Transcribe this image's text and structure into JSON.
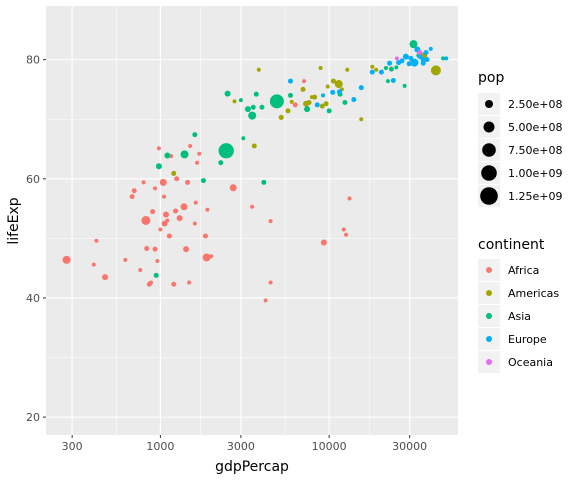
{
  "chart_data": {
    "type": "scatter",
    "title": "",
    "xlabel": "gdpPercap",
    "ylabel": "lifeExp",
    "x_scale": "log10",
    "xlim": [
      210,
      58000
    ],
    "ylim": [
      17,
      89
    ],
    "x_ticks": [
      300,
      1000,
      3000,
      10000,
      30000
    ],
    "x_tick_labels": [
      "300",
      "1000",
      "3000",
      "10000",
      "30000"
    ],
    "y_ticks": [
      20,
      40,
      60,
      80
    ],
    "y_tick_labels": [
      "20",
      "40",
      "60",
      "80"
    ],
    "grid": true,
    "legend_position": "right",
    "size_legend": {
      "title": "pop",
      "entries": [
        {
          "value": 250000000,
          "label": "2.50e+08"
        },
        {
          "value": 500000000,
          "label": "5.00e+08"
        },
        {
          "value": 750000000,
          "label": "7.50e+08"
        },
        {
          "value": 1000000000,
          "label": "1.00e+09"
        },
        {
          "value": 1250000000,
          "label": "1.25e+09"
        }
      ]
    },
    "color_legend": {
      "title": "continent",
      "entries": [
        {
          "name": "Africa",
          "color": "#F8766D"
        },
        {
          "name": "Americas",
          "color": "#A3A500"
        },
        {
          "name": "Asia",
          "color": "#00BF7D"
        },
        {
          "name": "Europe",
          "color": "#00B0F6"
        },
        {
          "name": "Oceania",
          "color": "#E76BF3"
        }
      ]
    },
    "series": [
      {
        "name": "Africa",
        "color": "#F8766D",
        "points": [
          [
            278,
            46.4,
            8
          ],
          [
            418,
            49.6,
            4
          ],
          [
            403,
            45.6,
            4
          ],
          [
            470,
            43.5,
            6
          ],
          [
            620,
            46.4,
            4
          ],
          [
            680,
            57,
            5
          ],
          [
            700,
            58,
            5
          ],
          [
            760,
            44.7,
            4
          ],
          [
            795,
            59.4,
            4
          ],
          [
            830,
            48.3,
            5
          ],
          [
            820,
            53,
            9
          ],
          [
            860,
            42.3,
            5
          ],
          [
            880,
            42.6,
            4
          ],
          [
            900,
            54.5,
            5
          ],
          [
            930,
            48.2,
            5
          ],
          [
            930,
            58.4,
            4
          ],
          [
            960,
            46.2,
            4
          ],
          [
            980,
            65.1,
            4
          ],
          [
            1000,
            51.5,
            4
          ],
          [
            1040,
            59.4,
            7
          ],
          [
            1050,
            57.0,
            4
          ],
          [
            1060,
            52.5,
            6
          ],
          [
            1080,
            54.0,
            6
          ],
          [
            1100,
            53.0,
            4
          ],
          [
            1130,
            50.4,
            5
          ],
          [
            1160,
            63.8,
            4
          ],
          [
            1200,
            42.3,
            5
          ],
          [
            1230,
            54.6,
            5
          ],
          [
            1250,
            60.0,
            5
          ],
          [
            1300,
            53.4,
            6
          ],
          [
            1380,
            55.3,
            7
          ],
          [
            1420,
            48.2,
            6
          ],
          [
            1450,
            59.4,
            5
          ],
          [
            1480,
            42.6,
            4
          ],
          [
            1500,
            65.5,
            4
          ],
          [
            1600,
            52.5,
            4
          ],
          [
            1620,
            56.0,
            4
          ],
          [
            1650,
            62.7,
            4
          ],
          [
            1700,
            64.2,
            4
          ],
          [
            1850,
            50.4,
            5
          ],
          [
            1880,
            46.8,
            8
          ],
          [
            1900,
            54.8,
            4
          ],
          [
            2000,
            47.0,
            4
          ],
          [
            2700,
            58.5,
            7
          ],
          [
            3500,
            55.3,
            4
          ],
          [
            4200,
            39.6,
            4
          ],
          [
            4500,
            42.6,
            4
          ],
          [
            4500,
            52.9,
            4
          ],
          [
            6300,
            72.4,
            5
          ],
          [
            7100,
            76.4,
            4
          ],
          [
            9300,
            49.3,
            6
          ],
          [
            12200,
            51.5,
            4
          ],
          [
            12600,
            50.6,
            4
          ],
          [
            13200,
            56.7,
            4
          ]
        ]
      },
      {
        "name": "Americas",
        "color": "#A3A500",
        "points": [
          [
            1200,
            60.9,
            5
          ],
          [
            2750,
            73.0,
            4
          ],
          [
            3600,
            65.5,
            5
          ],
          [
            3830,
            78.3,
            4
          ],
          [
            5200,
            70.3,
            5
          ],
          [
            5700,
            71.4,
            5
          ],
          [
            6000,
            72.9,
            4
          ],
          [
            7000,
            75.0,
            5
          ],
          [
            7300,
            72.6,
            6
          ],
          [
            7600,
            72.8,
            5
          ],
          [
            7900,
            73.7,
            4
          ],
          [
            8200,
            73.7,
            5
          ],
          [
            8900,
            78.6,
            4
          ],
          [
            9100,
            72.2,
            5
          ],
          [
            9600,
            72.6,
            5
          ],
          [
            9800,
            75.5,
            4
          ],
          [
            10600,
            76.4,
            5
          ],
          [
            11400,
            75.9,
            8
          ],
          [
            11900,
            75.0,
            4
          ],
          [
            12800,
            78.3,
            4
          ],
          [
            15500,
            70.0,
            4
          ],
          [
            18000,
            78.8,
            4
          ],
          [
            19000,
            78.3,
            4
          ],
          [
            36300,
            80.6,
            7
          ],
          [
            42900,
            78.2,
            10
          ]
        ]
      },
      {
        "name": "Asia",
        "color": "#00BF7D",
        "points": [
          [
            944,
            43.8,
            5
          ],
          [
            980,
            62.1,
            6
          ],
          [
            1100,
            63.9,
            6
          ],
          [
            1390,
            64.1,
            8
          ],
          [
            1600,
            67.4,
            5
          ],
          [
            1800,
            59.7,
            5
          ],
          [
            2450,
            64.7,
            15
          ],
          [
            2460,
            64.7,
            15
          ],
          [
            2280,
            62.7,
            5
          ],
          [
            2500,
            74.3,
            6
          ],
          [
            2600,
            65.0,
            5
          ],
          [
            3000,
            73.2,
            4
          ],
          [
            3100,
            66.8,
            4
          ],
          [
            3300,
            71.7,
            6
          ],
          [
            3500,
            70.6,
            8
          ],
          [
            3550,
            72.0,
            5
          ],
          [
            3700,
            74.2,
            5
          ],
          [
            4000,
            72.0,
            5
          ],
          [
            4100,
            59.4,
            5
          ],
          [
            4900,
            73.0,
            14
          ],
          [
            5900,
            74.0,
            5
          ],
          [
            7400,
            71.7,
            6
          ],
          [
            10000,
            71.4,
            5
          ],
          [
            11600,
            74.2,
            5
          ],
          [
            12400,
            72.8,
            5
          ],
          [
            21700,
            78.6,
            4
          ],
          [
            22300,
            76.4,
            4
          ],
          [
            23400,
            78.4,
            5
          ],
          [
            25000,
            78.7,
            4
          ],
          [
            28000,
            75.6,
            4
          ],
          [
            31600,
            82.6,
            8
          ],
          [
            34000,
            80.7,
            5
          ],
          [
            47300,
            80.2,
            4
          ]
        ]
      },
      {
        "name": "Europe",
        "color": "#00B0F6",
        "points": [
          [
            5900,
            76.4,
            5
          ],
          [
            8500,
            72.4,
            5
          ],
          [
            9200,
            74.0,
            4
          ],
          [
            10500,
            74.5,
            5
          ],
          [
            11500,
            74.6,
            5
          ],
          [
            14000,
            73.3,
            5
          ],
          [
            15500,
            75.3,
            5
          ],
          [
            18000,
            77.9,
            5
          ],
          [
            20400,
            77.9,
            5
          ],
          [
            22800,
            79.4,
            5
          ],
          [
            24000,
            76.5,
            5
          ],
          [
            25800,
            79.5,
            5
          ],
          [
            27000,
            79.8,
            5
          ],
          [
            28500,
            80.5,
            6
          ],
          [
            29800,
            79.3,
            5
          ],
          [
            30500,
            80.2,
            5
          ],
          [
            32000,
            79.5,
            8
          ],
          [
            33300,
            81.7,
            6
          ],
          [
            34500,
            80.5,
            5
          ],
          [
            36000,
            80.0,
            5
          ],
          [
            36100,
            79.4,
            5
          ],
          [
            37500,
            81.2,
            5
          ],
          [
            38000,
            80.0,
            5
          ],
          [
            40000,
            81.8,
            4
          ],
          [
            49400,
            80.2,
            4
          ]
        ]
      },
      {
        "name": "Oceania",
        "color": "#E76BF3",
        "points": [
          [
            25200,
            80.2,
            4
          ],
          [
            34400,
            81.2,
            5
          ]
        ]
      }
    ]
  }
}
